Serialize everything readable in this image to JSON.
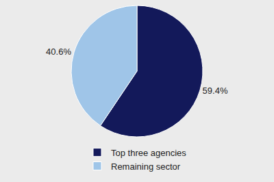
{
  "chart_data": {
    "type": "pie",
    "categories": [
      "Top three agencies",
      "Remaining sector"
    ],
    "values": [
      59.4,
      40.6
    ],
    "value_labels": [
      "59.4%",
      "40.6%"
    ],
    "colors": [
      "#13195a",
      "#9fc5e8"
    ],
    "data_labels": true,
    "legend": "bottom"
  }
}
